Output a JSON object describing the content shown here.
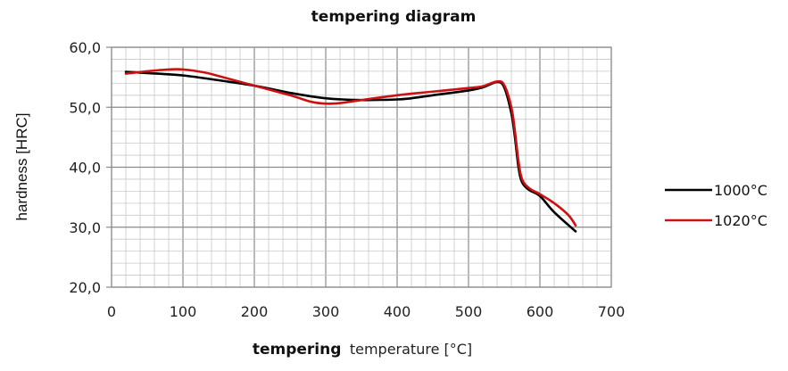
{
  "chart_data": {
    "type": "line",
    "title": "tempering diagram",
    "xlabel_bold": "tempering",
    "xlabel_rest": "temperature [°C]",
    "ylabel": "hardness [HRC]",
    "xlim": [
      0,
      700
    ],
    "ylim": [
      20,
      60
    ],
    "x_ticks": [
      "0",
      "100",
      "200",
      "300",
      "400",
      "500",
      "600",
      "700"
    ],
    "y_ticks": [
      "20,0",
      "30,0",
      "40,0",
      "50,0",
      "60,0"
    ],
    "grid": true,
    "legend_position": "right",
    "series": [
      {
        "name": "1000°C",
        "color": "#000000",
        "points": [
          [
            20,
            55.9
          ],
          [
            50,
            55.7
          ],
          [
            100,
            55.3
          ],
          [
            150,
            54.5
          ],
          [
            200,
            53.6
          ],
          [
            250,
            52.4
          ],
          [
            300,
            51.5
          ],
          [
            350,
            51.2
          ],
          [
            400,
            51.3
          ],
          [
            420,
            51.5
          ],
          [
            450,
            52.0
          ],
          [
            500,
            52.8
          ],
          [
            520,
            53.3
          ],
          [
            540,
            54.2
          ],
          [
            550,
            53.3
          ],
          [
            560,
            49.0
          ],
          [
            565,
            45.0
          ],
          [
            570,
            40.0
          ],
          [
            575,
            37.5
          ],
          [
            585,
            36.2
          ],
          [
            600,
            35.2
          ],
          [
            620,
            32.5
          ],
          [
            650,
            29.3
          ]
        ]
      },
      {
        "name": "1020°C",
        "color": "#cc1111",
        "points": [
          [
            20,
            55.6
          ],
          [
            50,
            56.0
          ],
          [
            80,
            56.3
          ],
          [
            100,
            56.3
          ],
          [
            130,
            55.8
          ],
          [
            150,
            55.2
          ],
          [
            200,
            53.6
          ],
          [
            250,
            52.0
          ],
          [
            280,
            50.9
          ],
          [
            300,
            50.6
          ],
          [
            320,
            50.7
          ],
          [
            350,
            51.2
          ],
          [
            400,
            52.0
          ],
          [
            450,
            52.6
          ],
          [
            500,
            53.2
          ],
          [
            520,
            53.5
          ],
          [
            540,
            54.3
          ],
          [
            550,
            53.7
          ],
          [
            560,
            50.0
          ],
          [
            565,
            46.0
          ],
          [
            570,
            41.0
          ],
          [
            575,
            38.0
          ],
          [
            585,
            36.5
          ],
          [
            600,
            35.5
          ],
          [
            620,
            34.0
          ],
          [
            640,
            32.0
          ],
          [
            650,
            30.3
          ]
        ]
      }
    ]
  }
}
